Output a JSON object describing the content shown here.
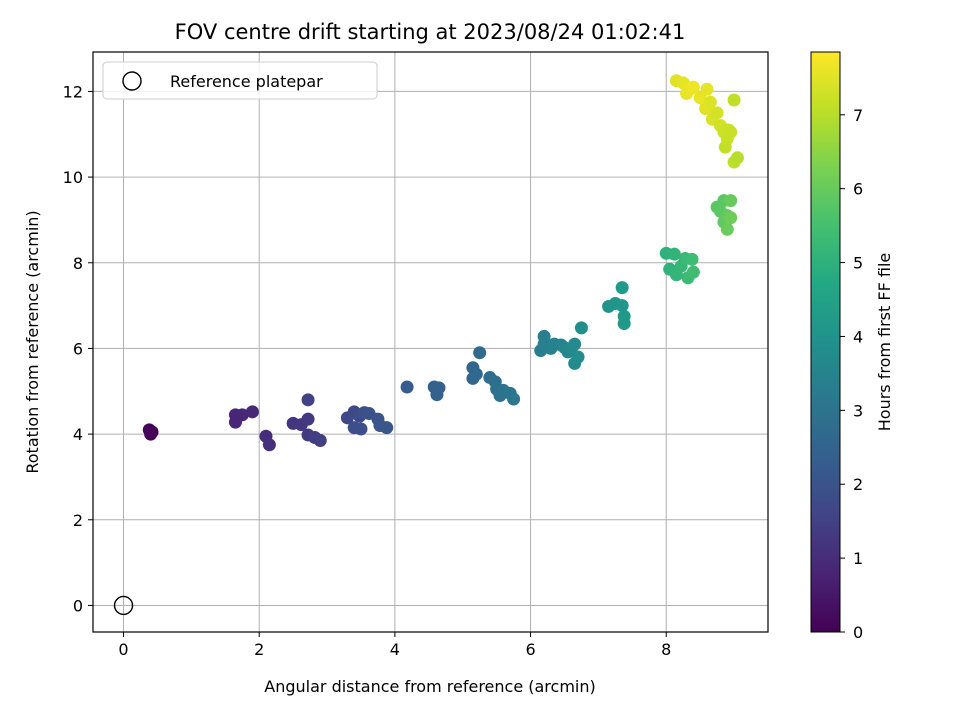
{
  "chart_data": {
    "type": "scatter",
    "title": "FOV centre drift starting at 2023/08/24 01:02:41",
    "xlabel": "Angular distance from reference (arcmin)",
    "ylabel": "Rotation from reference (arcmin)",
    "xlim": [
      -0.45,
      9.5
    ],
    "ylim": [
      -0.62,
      12.92
    ],
    "xticks": [
      0,
      2,
      4,
      6,
      8
    ],
    "yticks": [
      0,
      2,
      4,
      6,
      8,
      10,
      12
    ],
    "grid": true,
    "legend": {
      "placement": "top-left",
      "entries": [
        "Reference platepar"
      ]
    },
    "reference_point": {
      "x": 0,
      "y": 0,
      "label": "Reference platepar"
    },
    "colorbar": {
      "label": "Hours from first FF file",
      "colormap": "viridis",
      "range": [
        0,
        7.85
      ],
      "ticks": [
        0,
        1,
        2,
        3,
        4,
        5,
        6,
        7
      ]
    },
    "points": [
      {
        "x": 0.38,
        "y": 4.1,
        "t": 0.05
      },
      {
        "x": 0.42,
        "y": 4.05,
        "t": 0.08
      },
      {
        "x": 0.4,
        "y": 4.0,
        "t": 0.1
      },
      {
        "x": 1.65,
        "y": 4.45,
        "t": 0.8
      },
      {
        "x": 1.65,
        "y": 4.28,
        "t": 0.82
      },
      {
        "x": 1.75,
        "y": 4.45,
        "t": 0.85
      },
      {
        "x": 1.9,
        "y": 4.52,
        "t": 0.9
      },
      {
        "x": 2.1,
        "y": 3.95,
        "t": 1.0
      },
      {
        "x": 2.15,
        "y": 3.75,
        "t": 1.05
      },
      {
        "x": 2.5,
        "y": 4.25,
        "t": 1.2
      },
      {
        "x": 2.62,
        "y": 4.22,
        "t": 1.25
      },
      {
        "x": 2.72,
        "y": 4.35,
        "t": 1.3
      },
      {
        "x": 2.72,
        "y": 3.98,
        "t": 1.35
      },
      {
        "x": 2.82,
        "y": 3.92,
        "t": 1.4
      },
      {
        "x": 2.9,
        "y": 3.85,
        "t": 1.45
      },
      {
        "x": 2.72,
        "y": 4.8,
        "t": 1.5
      },
      {
        "x": 3.3,
        "y": 4.38,
        "t": 1.7
      },
      {
        "x": 3.4,
        "y": 4.52,
        "t": 1.75
      },
      {
        "x": 3.48,
        "y": 4.42,
        "t": 1.8
      },
      {
        "x": 3.55,
        "y": 4.5,
        "t": 1.85
      },
      {
        "x": 3.4,
        "y": 4.15,
        "t": 1.9
      },
      {
        "x": 3.5,
        "y": 4.12,
        "t": 1.9
      },
      {
        "x": 3.62,
        "y": 4.48,
        "t": 1.95
      },
      {
        "x": 3.75,
        "y": 4.35,
        "t": 2.0
      },
      {
        "x": 3.78,
        "y": 4.2,
        "t": 2.05
      },
      {
        "x": 3.88,
        "y": 4.15,
        "t": 2.1
      },
      {
        "x": 4.18,
        "y": 5.1,
        "t": 2.3
      },
      {
        "x": 4.58,
        "y": 5.1,
        "t": 2.4
      },
      {
        "x": 4.62,
        "y": 4.92,
        "t": 2.45
      },
      {
        "x": 4.65,
        "y": 5.08,
        "t": 2.45
      },
      {
        "x": 5.15,
        "y": 5.55,
        "t": 2.6
      },
      {
        "x": 5.15,
        "y": 5.3,
        "t": 2.62
      },
      {
        "x": 5.2,
        "y": 5.4,
        "t": 2.65
      },
      {
        "x": 5.25,
        "y": 5.9,
        "t": 2.7
      },
      {
        "x": 5.4,
        "y": 5.32,
        "t": 2.8
      },
      {
        "x": 5.48,
        "y": 5.22,
        "t": 2.85
      },
      {
        "x": 5.5,
        "y": 5.05,
        "t": 2.9
      },
      {
        "x": 5.55,
        "y": 4.9,
        "t": 2.95
      },
      {
        "x": 5.6,
        "y": 5.02,
        "t": 3.0
      },
      {
        "x": 5.7,
        "y": 4.95,
        "t": 3.05
      },
      {
        "x": 5.75,
        "y": 4.82,
        "t": 3.1
      },
      {
        "x": 6.15,
        "y": 5.95,
        "t": 3.3
      },
      {
        "x": 6.2,
        "y": 6.1,
        "t": 3.35
      },
      {
        "x": 6.2,
        "y": 6.28,
        "t": 3.35
      },
      {
        "x": 6.3,
        "y": 6.0,
        "t": 3.4
      },
      {
        "x": 6.35,
        "y": 6.1,
        "t": 3.45
      },
      {
        "x": 6.45,
        "y": 6.08,
        "t": 3.5
      },
      {
        "x": 6.5,
        "y": 6.02,
        "t": 3.55
      },
      {
        "x": 6.55,
        "y": 5.92,
        "t": 3.6
      },
      {
        "x": 6.6,
        "y": 6.0,
        "t": 3.65
      },
      {
        "x": 6.65,
        "y": 6.1,
        "t": 3.7
      },
      {
        "x": 6.65,
        "y": 5.65,
        "t": 3.75
      },
      {
        "x": 6.7,
        "y": 5.8,
        "t": 3.8
      },
      {
        "x": 6.75,
        "y": 6.48,
        "t": 3.85
      },
      {
        "x": 7.15,
        "y": 6.98,
        "t": 4.0
      },
      {
        "x": 7.25,
        "y": 7.05,
        "t": 4.05
      },
      {
        "x": 7.35,
        "y": 7.0,
        "t": 4.1
      },
      {
        "x": 7.38,
        "y": 6.58,
        "t": 4.15
      },
      {
        "x": 7.38,
        "y": 6.75,
        "t": 4.2
      },
      {
        "x": 7.35,
        "y": 7.42,
        "t": 4.25
      },
      {
        "x": 8.0,
        "y": 8.22,
        "t": 5.0
      },
      {
        "x": 8.05,
        "y": 7.85,
        "t": 5.05
      },
      {
        "x": 8.12,
        "y": 8.2,
        "t": 5.1
      },
      {
        "x": 8.15,
        "y": 7.72,
        "t": 5.15
      },
      {
        "x": 8.22,
        "y": 7.92,
        "t": 5.2
      },
      {
        "x": 8.28,
        "y": 8.1,
        "t": 5.25
      },
      {
        "x": 8.32,
        "y": 7.65,
        "t": 5.3
      },
      {
        "x": 8.38,
        "y": 8.08,
        "t": 5.35
      },
      {
        "x": 8.4,
        "y": 7.78,
        "t": 5.4
      },
      {
        "x": 8.75,
        "y": 9.3,
        "t": 5.8
      },
      {
        "x": 8.8,
        "y": 9.2,
        "t": 5.85
      },
      {
        "x": 8.85,
        "y": 9.45,
        "t": 5.85
      },
      {
        "x": 8.85,
        "y": 8.95,
        "t": 5.9
      },
      {
        "x": 8.9,
        "y": 9.1,
        "t": 5.95
      },
      {
        "x": 8.95,
        "y": 9.45,
        "t": 6.0
      },
      {
        "x": 8.9,
        "y": 8.78,
        "t": 6.05
      },
      {
        "x": 8.95,
        "y": 9.05,
        "t": 6.1
      },
      {
        "x": 8.15,
        "y": 12.25,
        "t": 7.5
      },
      {
        "x": 8.25,
        "y": 12.2,
        "t": 7.55
      },
      {
        "x": 8.3,
        "y": 11.95,
        "t": 7.6
      },
      {
        "x": 8.35,
        "y": 12.05,
        "t": 7.6
      },
      {
        "x": 8.4,
        "y": 12.1,
        "t": 7.65
      },
      {
        "x": 8.5,
        "y": 11.85,
        "t": 7.6
      },
      {
        "x": 8.58,
        "y": 11.6,
        "t": 7.5
      },
      {
        "x": 8.6,
        "y": 12.05,
        "t": 7.55
      },
      {
        "x": 8.65,
        "y": 11.75,
        "t": 7.45
      },
      {
        "x": 8.68,
        "y": 11.35,
        "t": 7.4
      },
      {
        "x": 8.75,
        "y": 11.5,
        "t": 7.35
      },
      {
        "x": 8.8,
        "y": 11.2,
        "t": 7.3
      },
      {
        "x": 8.85,
        "y": 11.05,
        "t": 7.25
      },
      {
        "x": 8.9,
        "y": 10.9,
        "t": 7.2
      },
      {
        "x": 8.92,
        "y": 11.1,
        "t": 7.25
      },
      {
        "x": 8.95,
        "y": 11.05,
        "t": 7.2
      },
      {
        "x": 8.87,
        "y": 10.7,
        "t": 7.15
      },
      {
        "x": 9.0,
        "y": 11.8,
        "t": 7.1
      },
      {
        "x": 9.0,
        "y": 10.35,
        "t": 7.05
      },
      {
        "x": 9.05,
        "y": 10.45,
        "t": 7.0
      }
    ]
  }
}
